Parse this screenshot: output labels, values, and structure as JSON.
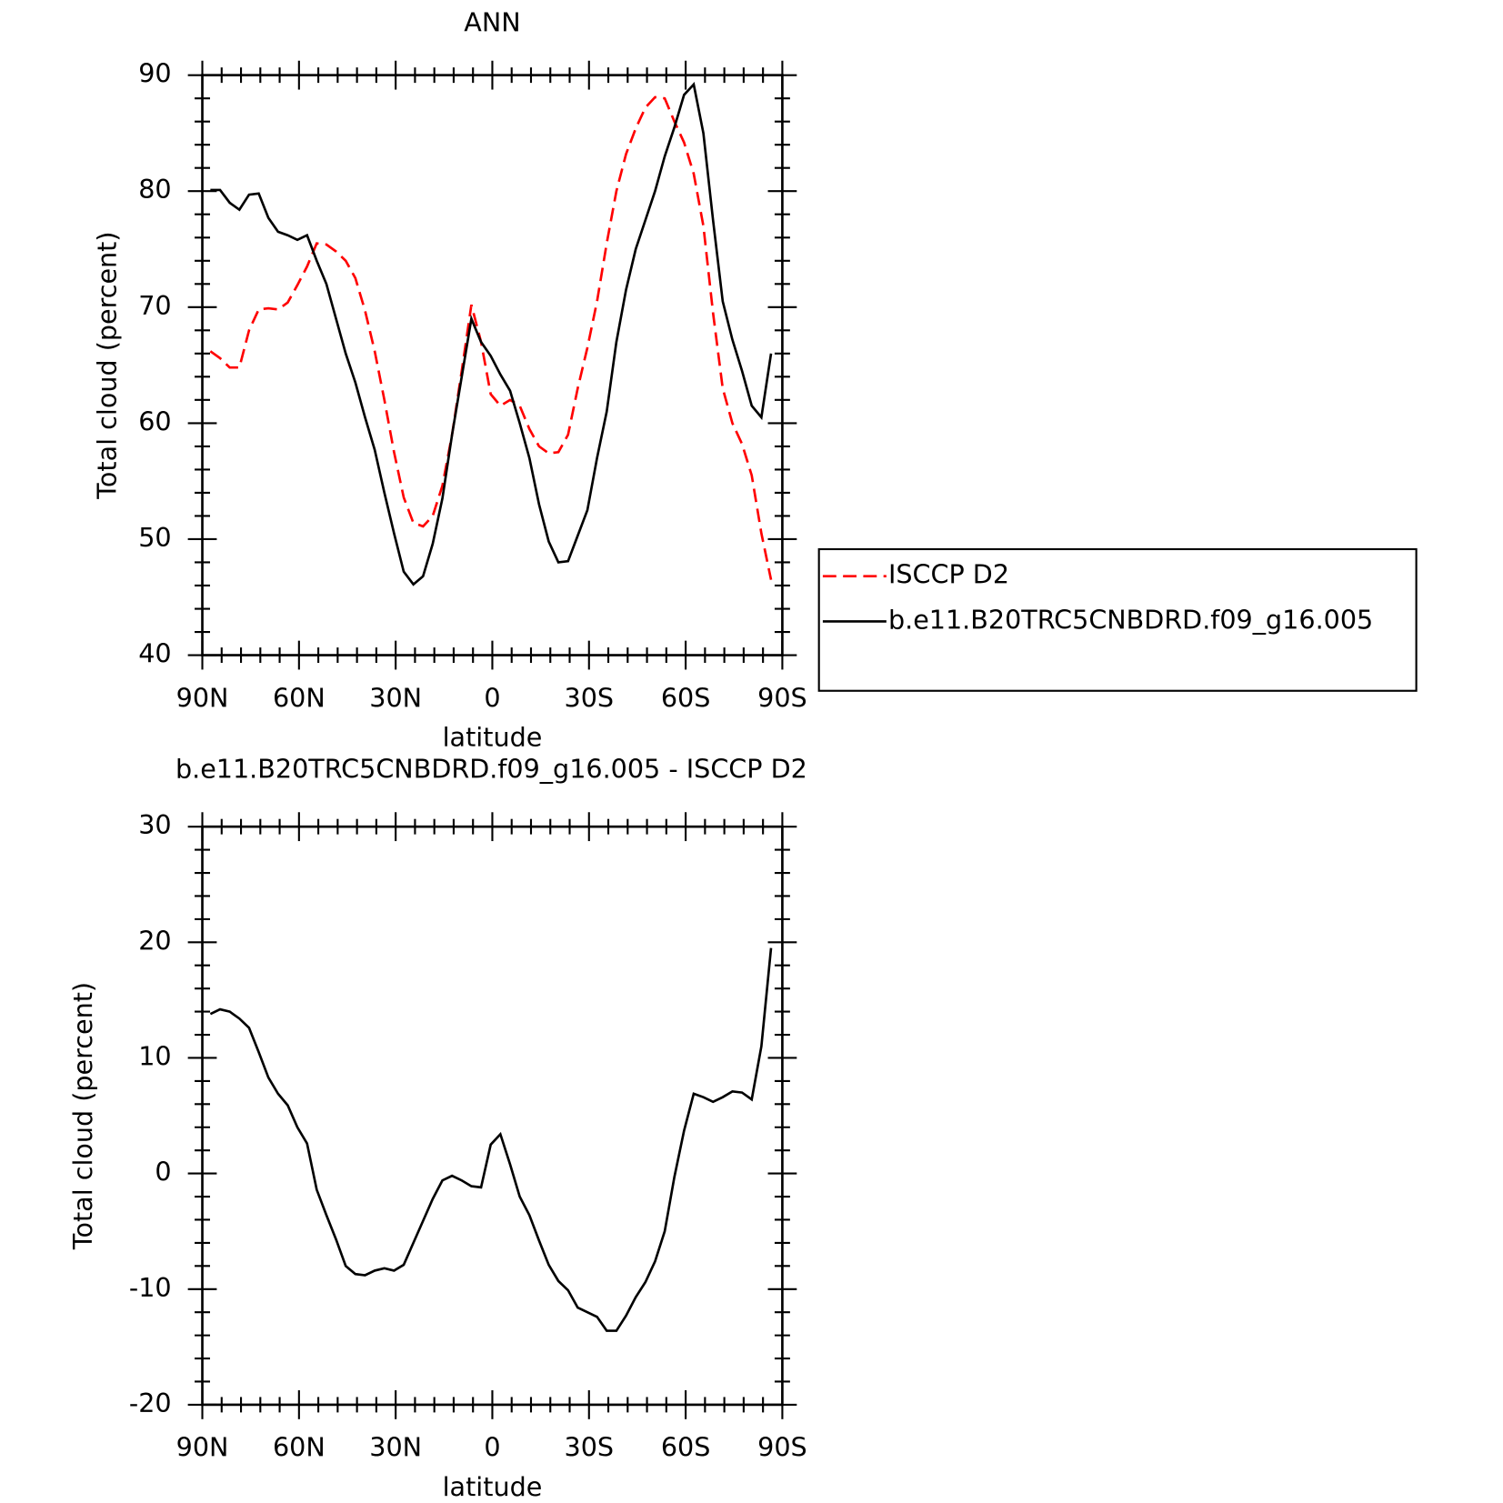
{
  "chart_data": [
    {
      "type": "line",
      "title": "ANN",
      "x_label": "latitude",
      "y_label": "Total cloud (percent)",
      "x": [
        87.5,
        84.5,
        81.5,
        78.5,
        75.5,
        72.5,
        69.5,
        66.5,
        63.5,
        60.5,
        57.5,
        54.5,
        51.5,
        48.5,
        45.5,
        42.5,
        39.5,
        36.5,
        33.5,
        30.5,
        27.5,
        24.5,
        21.5,
        18.5,
        15.5,
        12.5,
        9.5,
        6.5,
        3.5,
        0.5,
        -2.5,
        -5.5,
        -8.5,
        -11.5,
        -14.5,
        -17.5,
        -20.5,
        -23.5,
        -26.5,
        -29.5,
        -32.5,
        -35.5,
        -38.5,
        -41.5,
        -44.5,
        -47.5,
        -50.5,
        -53.5,
        -56.5,
        -59.5,
        -62.5,
        -65.5,
        -68.5,
        -71.5,
        -74.5,
        -77.5,
        -80.5,
        -83.5,
        -86.5
      ],
      "series": [
        {
          "name": "ISCCP D2",
          "color": "#ff0000",
          "style": "dashed",
          "values": [
            66.2,
            65.6,
            64.8,
            64.8,
            68,
            69.8,
            69.9,
            69.8,
            70.4,
            71.9,
            73.5,
            75.5,
            75.4,
            74.8,
            74.0,
            72.5,
            69.7,
            66.2,
            62.0,
            57.5,
            53.6,
            51.4,
            51.1,
            52.0,
            54.6,
            59.0,
            64.5,
            70.2,
            67.0,
            62.5,
            61.5,
            62.0,
            61.5,
            59.5,
            58.0,
            57.4,
            57.5,
            59.0,
            63.0,
            66.5,
            70.5,
            75.5,
            80.0,
            83.2,
            85.4,
            87.2,
            88.1,
            88.0,
            86.0,
            84.2,
            81.5,
            77.0,
            69.5,
            63.0,
            60.0,
            58.2,
            55.5,
            50.5,
            46.5
          ]
        },
        {
          "name": "b.e11.B20TRC5CNBDRD.f09_g16.005",
          "color": "#000000",
          "style": "solid",
          "values": [
            80.1,
            80.1,
            79.0,
            78.4,
            79.7,
            79.8,
            77.7,
            76.5,
            76.2,
            75.8,
            76.2,
            74.0,
            72.0,
            69.0,
            66.0,
            63.5,
            60.5,
            57.7,
            54.0,
            50.5,
            47.2,
            46.1,
            46.8,
            49.6,
            53.5,
            59.0,
            64.0,
            69.0,
            67.0,
            65.8,
            64.2,
            62.8,
            60.0,
            57.0,
            53.0,
            49.8,
            48.0,
            48.1,
            50.3,
            52.5,
            57.0,
            61.0,
            67.0,
            71.5,
            75.0,
            77.5,
            80.0,
            83.0,
            85.5,
            88.3,
            89.2,
            85.0,
            77.5,
            70.5,
            67.2,
            64.5,
            61.5,
            60.5,
            66.0
          ]
        }
      ],
      "xlim": [
        90,
        -90
      ],
      "xticks": [
        {
          "value": 90,
          "label": "90N"
        },
        {
          "value": 60,
          "label": "60N"
        },
        {
          "value": 30,
          "label": "30N"
        },
        0,
        {
          "value": -30,
          "label": "30S"
        },
        {
          "value": -60,
          "label": "60S"
        },
        {
          "value": -90,
          "label": "90S"
        }
      ],
      "ylim": [
        40,
        90
      ],
      "yticks": [
        40,
        50,
        60,
        70,
        80,
        90
      ],
      "legend": "right"
    },
    {
      "type": "line",
      "title": "b.e11.B20TRC5CNBDRD.f09_g16.005 - ISCCP D2",
      "x_label": "latitude",
      "y_label": "Total cloud (percent)",
      "x": [
        87.5,
        84.5,
        81.5,
        78.5,
        75.5,
        72.5,
        69.5,
        66.5,
        63.5,
        60.5,
        57.5,
        54.5,
        51.5,
        48.5,
        45.5,
        42.5,
        39.5,
        36.5,
        33.5,
        30.5,
        27.5,
        24.5,
        21.5,
        18.5,
        15.5,
        12.5,
        9.5,
        6.5,
        3.5,
        0.5,
        -2.5,
        -5.5,
        -8.5,
        -11.5,
        -14.5,
        -17.5,
        -20.5,
        -23.5,
        -26.5,
        -29.5,
        -32.5,
        -35.5,
        -38.5,
        -41.5,
        -44.5,
        -47.5,
        -50.5,
        -53.5,
        -56.5,
        -59.5,
        -62.5,
        -65.5,
        -68.5,
        -71.5,
        -74.5,
        -77.5,
        -80.5,
        -83.5,
        -86.5
      ],
      "series": [
        {
          "color": "#000000",
          "style": "solid",
          "values": [
            13.8,
            14.2,
            14.0,
            13.4,
            12.6,
            10.5,
            8.3,
            6.9,
            5.9,
            4.0,
            2.6,
            -1.4,
            -3.6,
            -5.7,
            -8.0,
            -8.7,
            -8.8,
            -8.4,
            -8.2,
            -8.4,
            -7.9,
            -6.0,
            -4.1,
            -2.2,
            -0.6,
            -0.2,
            -0.6,
            -1.1,
            -1.2,
            2.5,
            3.4,
            0.8,
            -2.0,
            -3.6,
            -5.8,
            -7.9,
            -9.3,
            -10.1,
            -11.6,
            -12.0,
            -12.4,
            -13.6,
            -13.6,
            -12.3,
            -10.7,
            -9.4,
            -7.6,
            -5.0,
            -0.3,
            3.7,
            6.9,
            6.6,
            6.2,
            6.6,
            7.1,
            7.0,
            6.4,
            11.0,
            19.5
          ]
        }
      ],
      "xlim": [
        90,
        -90
      ],
      "xticks": [
        {
          "value": 90,
          "label": "90N"
        },
        {
          "value": 60,
          "label": "60N"
        },
        {
          "value": 30,
          "label": "30N"
        },
        0,
        {
          "value": -30,
          "label": "30S"
        },
        {
          "value": -60,
          "label": "60S"
        },
        {
          "value": -90,
          "label": "90S"
        }
      ],
      "ylim": [
        -20,
        30
      ],
      "yticks": [
        -20,
        -10,
        0,
        10,
        20,
        30
      ]
    }
  ]
}
